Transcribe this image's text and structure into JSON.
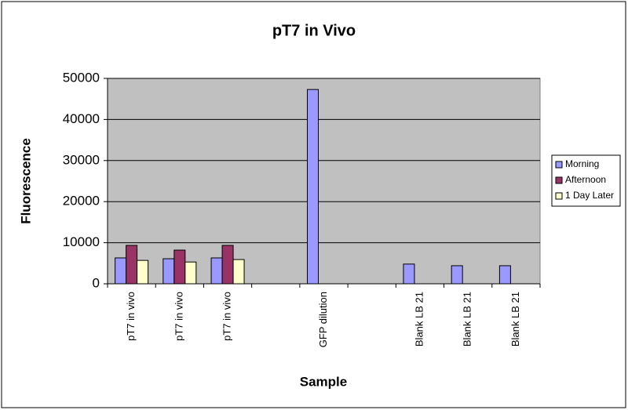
{
  "chart_data": {
    "type": "bar",
    "title": "pT7 in Vivo",
    "x_label": "Sample",
    "y_label": "Fluorescence",
    "categories": [
      "pT7 in vivo",
      "pT7 in vivo",
      "pT7 in vivo",
      null,
      "GFP dilution",
      null,
      "Blank LB 21",
      "Blank LB 21",
      "Blank LB 21"
    ],
    "series": [
      {
        "name": "Morning",
        "color": "#9999ff",
        "values": [
          6300,
          6100,
          6300,
          null,
          47300,
          null,
          4800,
          4400,
          4400
        ]
      },
      {
        "name": "Afternoon",
        "color": "#993366",
        "values": [
          9350,
          8200,
          9350,
          null,
          null,
          null,
          null,
          null,
          null
        ]
      },
      {
        "name": "1 Day Later",
        "color": "#ffffcc",
        "values": [
          5700,
          5300,
          5900,
          null,
          null,
          null,
          null,
          null,
          null
        ]
      }
    ],
    "ylim": [
      0,
      50000
    ],
    "yticks": [
      0,
      10000,
      20000,
      30000,
      40000,
      50000
    ],
    "grid": true,
    "legend": "right"
  }
}
